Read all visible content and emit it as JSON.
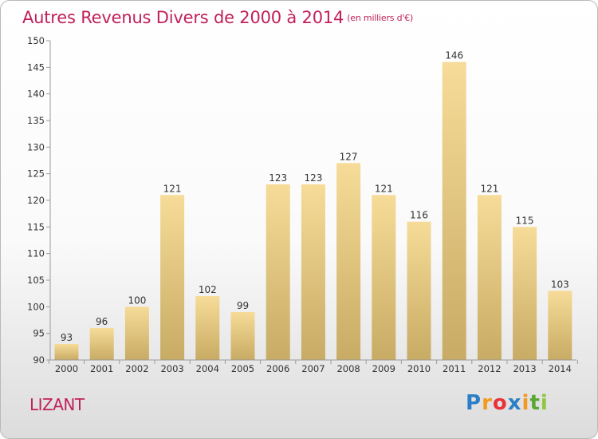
{
  "title": "Autres Revenus Divers de 2000 à 2014",
  "subtitle": "(en milliers d'€)",
  "commune": "LIZANT",
  "logo": {
    "text": "Proxiti",
    "letters": [
      {
        "ch": "P",
        "color": "#2b7fc6"
      },
      {
        "ch": "r",
        "color": "#f29a1f"
      },
      {
        "ch": "o",
        "color": "#e8333b"
      },
      {
        "ch": "x",
        "color": "#2b7fc6"
      },
      {
        "ch": "i",
        "color": "#f29a1f"
      },
      {
        "ch": "t",
        "color": "#5aa832"
      },
      {
        "ch": "i",
        "color": "#8dc63f"
      }
    ]
  },
  "colors": {
    "title": "#c1205a",
    "bar_light": "#f6dc98",
    "bar_dark": "#c8ab64",
    "axis": "#9a9a9a"
  },
  "chart_data": {
    "type": "bar",
    "title": "Autres Revenus Divers de 2000 à 2014",
    "subtitle": "(en milliers d'€)",
    "xlabel": "",
    "ylabel": "",
    "ylim": [
      90,
      150
    ],
    "yticks": [
      90,
      95,
      100,
      105,
      110,
      115,
      120,
      125,
      130,
      135,
      140,
      145,
      150
    ],
    "categories": [
      "2000",
      "2001",
      "2002",
      "2003",
      "2004",
      "2005",
      "2006",
      "2007",
      "2008",
      "2009",
      "2010",
      "2011",
      "2012",
      "2013",
      "2014"
    ],
    "values": [
      93,
      96,
      100,
      121,
      102,
      99,
      123,
      123,
      127,
      121,
      116,
      146,
      121,
      115,
      103
    ],
    "grid": false,
    "legend": "none"
  }
}
